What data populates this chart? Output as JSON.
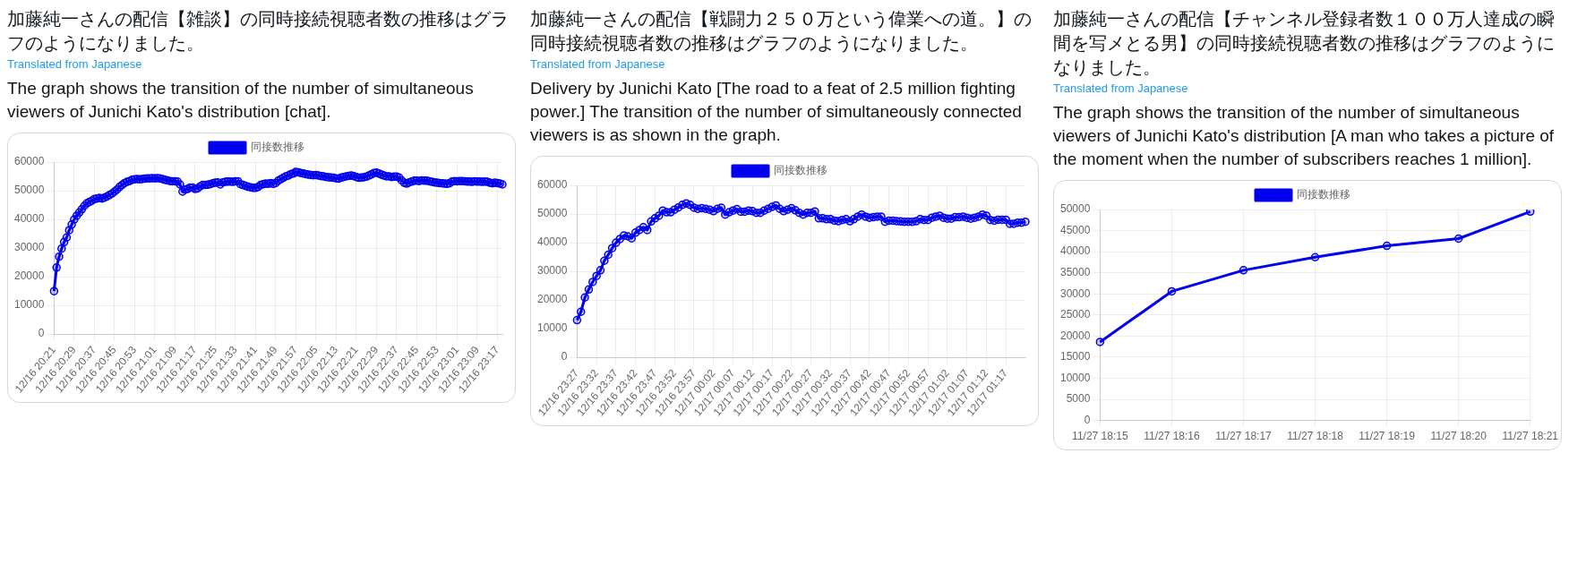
{
  "chart_data": [
    {
      "type": "line",
      "title": "加藤純一さんの配信【雑談】の同時接続視聴者数の推移はグラフのようになりました。",
      "subtitle": "The graph shows the transition of the number of simultaneous viewers of Junichi Kato's distribution [chat].",
      "annotations": [
        "Translated from Japanese"
      ],
      "legend": "top",
      "grid": true,
      "marker": "circle",
      "categories": [
        "12/16 20:21",
        null,
        null,
        null,
        null,
        null,
        null,
        null,
        "12/16 20:29",
        null,
        null,
        null,
        null,
        null,
        null,
        null,
        "12/16 20:37",
        null,
        null,
        null,
        null,
        null,
        null,
        null,
        "12/16 20:45",
        null,
        null,
        null,
        null,
        null,
        null,
        null,
        "12/16 20:53",
        null,
        null,
        null,
        null,
        null,
        null,
        null,
        "12/16 21:01",
        null,
        null,
        null,
        null,
        null,
        null,
        null,
        "12/16 21:09",
        null,
        null,
        null,
        null,
        null,
        null,
        null,
        "12/16 21:17",
        null,
        null,
        null,
        null,
        null,
        null,
        null,
        "12/16 21:25",
        null,
        null,
        null,
        null,
        null,
        null,
        null,
        "12/16 21:33",
        null,
        null,
        null,
        null,
        null,
        null,
        null,
        "12/16 21:41",
        null,
        null,
        null,
        null,
        null,
        null,
        null,
        "12/16 21:49",
        null,
        null,
        null,
        null,
        null,
        null,
        null,
        "12/16 21:57",
        null,
        null,
        null,
        null,
        null,
        null,
        null,
        "12/16 22:05",
        null,
        null,
        null,
        null,
        null,
        null,
        null,
        "12/16 22:13",
        null,
        null,
        null,
        null,
        null,
        null,
        null,
        "12/16 22:21",
        null,
        null,
        null,
        null,
        null,
        null,
        null,
        "12/16 22:29",
        null,
        null,
        null,
        null,
        null,
        null,
        null,
        "12/16 22:37",
        null,
        null,
        null,
        null,
        null,
        null,
        null,
        "12/16 22:45",
        null,
        null,
        null,
        null,
        null,
        null,
        null,
        "12/16 22:53",
        null,
        null,
        null,
        null,
        null,
        null,
        null,
        "12/16 23:01",
        null,
        null,
        null,
        null,
        null,
        null,
        null,
        "12/16 23:09",
        null,
        null,
        null,
        null,
        null,
        null,
        null,
        "12/16 23:17",
        null,
        null
      ],
      "ylim": [
        0,
        60000
      ],
      "yticks": [
        0,
        10000,
        20000,
        30000,
        40000,
        50000,
        60000
      ],
      "series": [
        {
          "name": "同接数推移",
          "color": "#0000ee",
          "values": [
            15000,
            23200,
            27000,
            29800,
            32100,
            33700,
            36200,
            38200,
            40000,
            41300,
            42400,
            43500,
            44700,
            45600,
            46100,
            46500,
            47100,
            47300,
            47500,
            47300,
            47600,
            48000,
            48500,
            49000,
            49700,
            50400,
            51300,
            52000,
            52700,
            53100,
            53400,
            53800,
            54000,
            54100,
            54000,
            54100,
            54200,
            54300,
            54300,
            54400,
            54300,
            54400,
            54300,
            54100,
            53800,
            53600,
            53400,
            53300,
            53300,
            53200,
            52200,
            49700,
            50400,
            50600,
            51100,
            51100,
            50600,
            50800,
            51500,
            52000,
            52000,
            52100,
            52300,
            52600,
            52800,
            52900,
            52200,
            52900,
            53100,
            53200,
            53200,
            53100,
            53300,
            53300,
            52300,
            52000,
            51700,
            51400,
            51200,
            51000,
            51000,
            51300,
            52000,
            52300,
            52500,
            52400,
            52700,
            52400,
            52700,
            53500,
            54000,
            54500,
            55000,
            55300,
            55800,
            56000,
            56600,
            56400,
            56200,
            56000,
            55800,
            55600,
            55500,
            55400,
            55500,
            55300,
            55100,
            55000,
            54800,
            54700,
            54600,
            54500,
            54300,
            54200,
            54600,
            54800,
            55000,
            55200,
            55300,
            55100,
            54800,
            54500,
            54600,
            54700,
            54900,
            55300,
            55700,
            56200,
            56300,
            56000,
            55600,
            55300,
            55000,
            55000,
            54800,
            54900,
            54900,
            54600,
            53600,
            52800,
            52500,
            52900,
            53200,
            53500,
            53500,
            53400,
            53600,
            53500,
            53500,
            53300,
            53100,
            52900,
            52800,
            52700,
            52600,
            52500,
            52400,
            52600,
            53200,
            53400,
            53300,
            53400,
            53400,
            53300,
            53200,
            53200,
            53100,
            53300,
            53200,
            53200,
            53100,
            53200,
            53100,
            52800,
            52600,
            52800,
            52700,
            52500,
            52200
          ]
        }
      ]
    },
    {
      "type": "line",
      "title": "加藤純一さんの配信【戦闘力２５０万という偉業への道。】の同時接続視聴者数の推移はグラフのようになりました。",
      "subtitle": "Delivery by Junichi Kato [The road to a feat of 2.5 million fighting power.] The transition of the number of simultaneously connected viewers is as shown in the graph.",
      "annotations": [
        "Translated from Japanese"
      ],
      "legend": "top",
      "grid": true,
      "marker": "circle",
      "categories": [
        "12/16 23:27",
        null,
        null,
        null,
        null,
        "12/16 23:32",
        null,
        null,
        null,
        null,
        "12/16 23:37",
        null,
        null,
        null,
        null,
        "12/16 23:42",
        null,
        null,
        null,
        null,
        "12/16 23:47",
        null,
        null,
        null,
        null,
        "12/16 23:52",
        null,
        null,
        null,
        null,
        "12/16 23:57",
        null,
        null,
        null,
        null,
        "12/17 00:02",
        null,
        null,
        null,
        null,
        "12/17 00:07",
        null,
        null,
        null,
        null,
        "12/17 00:12",
        null,
        null,
        null,
        null,
        "12/17 00:17",
        null,
        null,
        null,
        null,
        "12/17 00:22",
        null,
        null,
        null,
        null,
        "12/17 00:27",
        null,
        null,
        null,
        null,
        "12/17 00:32",
        null,
        null,
        null,
        null,
        "12/17 00:37",
        null,
        null,
        null,
        null,
        "12/17 00:42",
        null,
        null,
        null,
        null,
        "12/17 00:47",
        null,
        null,
        null,
        null,
        "12/17 00:52",
        null,
        null,
        null,
        null,
        "12/17 00:57",
        null,
        null,
        null,
        null,
        "12/17 01:02",
        null,
        null,
        null,
        null,
        "12/17 01:07",
        null,
        null,
        null,
        null,
        "12/17 01:12",
        null,
        null,
        null,
        null,
        "12/17 01:17",
        null,
        null,
        null,
        null,
        null
      ],
      "ylim": [
        0,
        60000
      ],
      "yticks": [
        0,
        10000,
        20000,
        30000,
        40000,
        50000,
        60000
      ],
      "series": [
        {
          "name": "同接数推移",
          "color": "#0000ee",
          "values": [
            13000,
            15900,
            20900,
            23700,
            26300,
            28400,
            30400,
            33700,
            35800,
            38100,
            40000,
            41300,
            42500,
            42200,
            41500,
            43500,
            44400,
            45400,
            44400,
            47400,
            48500,
            49400,
            51200,
            50600,
            50600,
            51500,
            52300,
            53200,
            53700,
            53200,
            52200,
            51800,
            52000,
            51800,
            51500,
            51000,
            51800,
            52200,
            49800,
            50600,
            51200,
            51700,
            50800,
            50800,
            51200,
            51000,
            50400,
            50400,
            51200,
            51800,
            52500,
            53000,
            51800,
            51000,
            51500,
            52000,
            51300,
            50400,
            49800,
            50400,
            50400,
            50900,
            48500,
            48500,
            48200,
            48200,
            47700,
            47500,
            47900,
            48200,
            47500,
            48200,
            49100,
            49800,
            49100,
            48700,
            48900,
            49100,
            49100,
            47300,
            47700,
            47700,
            47500,
            47400,
            47300,
            47300,
            47300,
            47500,
            48200,
            47900,
            47900,
            48700,
            49100,
            49400,
            48700,
            48400,
            48400,
            48900,
            48900,
            49100,
            48700,
            48400,
            48700,
            49100,
            49800,
            49400,
            47900,
            47700,
            48000,
            48000,
            48000,
            46600,
            46600,
            47000,
            47000,
            47300
          ]
        }
      ]
    },
    {
      "type": "line",
      "title": "加藤純一さんの配信【チャンネル登録者数１００万人達成の瞬間を写メとる男】の同時接続視聴者数の推移はグラフのようになりました。",
      "subtitle": "The graph shows the transition of the number of simultaneous viewers of Junichi Kato's distribution [A man who takes a picture of the moment when the number of subscribers reaches 1 million].",
      "annotations": [
        "Translated from Japanese"
      ],
      "legend": "top",
      "grid": true,
      "marker": "circle",
      "categories": [
        "11/27 18:15",
        "11/27 18:16",
        "11/27 18:17",
        "11/27 18:18",
        "11/27 18:19",
        "11/27 18:20",
        "11/27 18:21"
      ],
      "ylim": [
        0,
        50000
      ],
      "yticks": [
        0,
        5000,
        10000,
        15000,
        20000,
        25000,
        30000,
        35000,
        40000,
        45000,
        50000
      ],
      "series": [
        {
          "name": "同接数推移",
          "color": "#0000ee",
          "values": [
            18600,
            30600,
            35600,
            38700,
            41400,
            43100,
            49500
          ]
        }
      ]
    }
  ]
}
